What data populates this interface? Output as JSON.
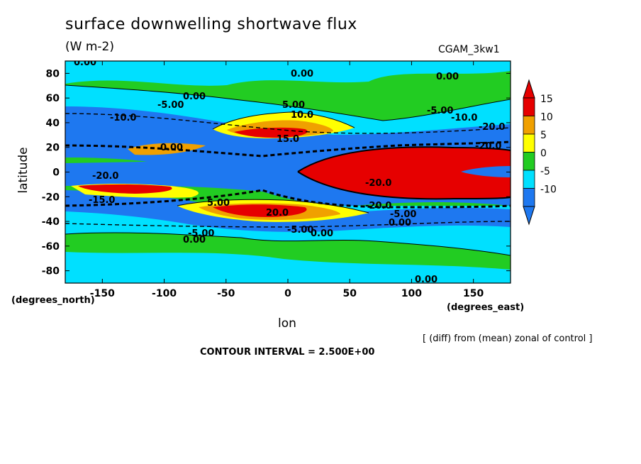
{
  "header": {
    "title": "surface downwelling shortwave flux",
    "units": "(W m-2)",
    "run_label": "CGAM_3kw1"
  },
  "chart_data": {
    "type": "heatmap",
    "title": "surface downwelling shortwave flux",
    "subtitle": "(W m-2)",
    "xlabel": "lon",
    "ylabel": "latitude",
    "x_units": "(degrees_east)",
    "y_units": "(degrees_north)",
    "xlim": [
      -180,
      180
    ],
    "ylim": [
      -90,
      90
    ],
    "x_ticks": [
      -150,
      -100,
      -50,
      0,
      50,
      100,
      150
    ],
    "y_ticks": [
      80,
      60,
      40,
      20,
      0,
      -20,
      -40,
      -60,
      -80
    ],
    "colorbar": {
      "levels": [
        15,
        10,
        5,
        0,
        -5,
        -10
      ],
      "colors": [
        "#e60000",
        "#f0a000",
        "#ffff00",
        "#22cc22",
        "#00e0ff",
        "#1e78f0"
      ],
      "extends": "both"
    },
    "contour_labels": [
      "0.00",
      "-5.00",
      "-10.0",
      "-15.0",
      "-20.0",
      "5.00",
      "10.0",
      "15.0",
      "20.0"
    ],
    "note": "[ (diff) from (mean) zonal of control ]",
    "contour_interval": "CONTOUR INTERVAL = 2.500E+00",
    "grid": false,
    "legend": "right"
  }
}
